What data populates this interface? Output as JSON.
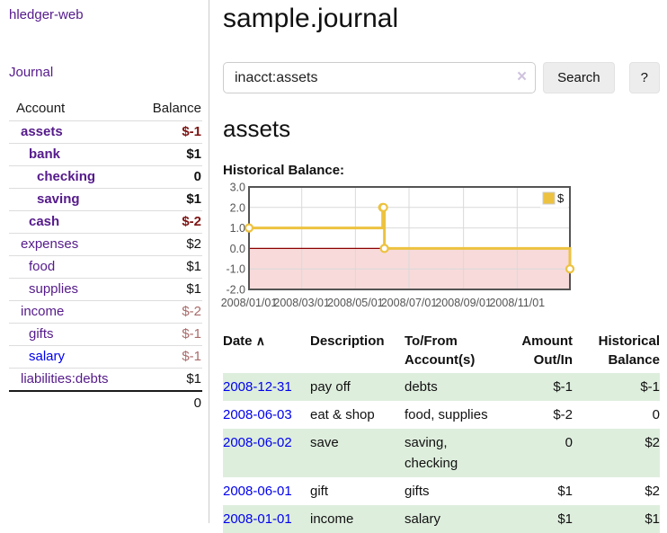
{
  "app": {
    "brand": "hledger-web",
    "nav_journal": "Journal"
  },
  "colors": {
    "link_purple": "#551a8b",
    "link_blue": "#0000ee",
    "neg_strong": "#7e1414",
    "neg_soft": "#a96a6a",
    "stripe_green": "#deeedd",
    "chart_line": "#edc240",
    "chart_negative_fill": "#f8dada",
    "chart_zero_line": "#8b0000",
    "chart_border": "#545454",
    "chart_grid": "#d9d9d9"
  },
  "sidebar": {
    "accounts_table": {
      "headers": [
        "Account",
        "Balance"
      ],
      "rows": [
        {
          "name": "assets",
          "indent": 1,
          "bold": true,
          "balance": "$-1",
          "balance_class": "neg-strong"
        },
        {
          "name": "bank",
          "indent": 2,
          "bold": true,
          "balance": "$1",
          "balance_class": "pos"
        },
        {
          "name": "checking",
          "indent": 3,
          "bold": true,
          "balance": "0",
          "balance_class": "pos"
        },
        {
          "name": "saving",
          "indent": 3,
          "bold": true,
          "balance": "$1",
          "balance_class": "pos"
        },
        {
          "name": "cash",
          "indent": 2,
          "bold": true,
          "balance": "$-2",
          "balance_class": "neg-strong"
        },
        {
          "name": "expenses",
          "indent": 1,
          "bold": false,
          "balance": "$2",
          "balance_class": "pos"
        },
        {
          "name": "food",
          "indent": 2,
          "bold": false,
          "balance": "$1",
          "balance_class": "pos"
        },
        {
          "name": "supplies",
          "indent": 2,
          "bold": false,
          "balance": "$1",
          "balance_class": "pos"
        },
        {
          "name": "income",
          "indent": 1,
          "bold": false,
          "balance": "$-2",
          "balance_class": "neg-soft"
        },
        {
          "name": "gifts",
          "indent": 2,
          "bold": false,
          "balance": "$-1",
          "balance_class": "neg-soft"
        },
        {
          "name": "salary",
          "indent": 2,
          "bold": false,
          "balance": "$-1",
          "balance_class": "neg-soft",
          "link_color": "blue"
        },
        {
          "name": "liabilities:debts",
          "indent": 1,
          "bold": false,
          "balance": "$1",
          "balance_class": "pos"
        }
      ],
      "total": "0"
    }
  },
  "header": {
    "title": "sample.journal"
  },
  "search": {
    "value": "inacct:assets",
    "clear_icon": "×",
    "button": "Search",
    "help_button": "?"
  },
  "account_page": {
    "heading": "assets",
    "chart_label": "Historical Balance:"
  },
  "chart_data": {
    "type": "line",
    "style": "step",
    "series": [
      {
        "name": "$",
        "color": "#edc240",
        "points": [
          [
            "2008-01-01",
            1
          ],
          [
            "2008-06-01",
            2
          ],
          [
            "2008-06-02",
            2
          ],
          [
            "2008-06-03",
            0
          ],
          [
            "2008-12-31",
            -1
          ]
        ]
      }
    ],
    "x_range": [
      "2008-01-01",
      "2008-12-31"
    ],
    "x_ticks": [
      "2008/01/01",
      "2008/03/01",
      "2008/05/01",
      "2008/07/01",
      "2008/09/01",
      "2008/11/01"
    ],
    "y_ticks": [
      "3.0",
      "2.0",
      "1.0",
      "0.0",
      "-1.0",
      "-2.0"
    ],
    "ylim": [
      -2,
      3
    ],
    "grid": true,
    "legend_position": "top-right",
    "legend": [
      "$"
    ],
    "negative_region": {
      "from": 0,
      "to": -2
    }
  },
  "transactions": {
    "sort_icon": "∧",
    "columns": [
      "Date",
      "Description",
      "To/From Account(s)",
      "Amount Out/In",
      "Historical Balance"
    ],
    "rows": [
      {
        "date": "2008-12-31",
        "description": "pay off",
        "accounts": "debts",
        "amount": "$-1",
        "amount_neg": true,
        "balance": "$-1",
        "balance_neg": true,
        "striped": true
      },
      {
        "date": "2008-06-03",
        "description": "eat & shop",
        "accounts": "food, supplies",
        "amount": "$-2",
        "amount_neg": true,
        "balance": "0",
        "balance_neg": false,
        "striped": false
      },
      {
        "date": "2008-06-02",
        "description": "save",
        "accounts": "saving, checking",
        "amount": "0",
        "amount_neg": false,
        "balance": "$2",
        "balance_neg": false,
        "striped": true
      },
      {
        "date": "2008-06-01",
        "description": "gift",
        "accounts": "gifts",
        "amount": "$1",
        "amount_neg": false,
        "balance": "$2",
        "balance_neg": false,
        "striped": false
      },
      {
        "date": "2008-01-01",
        "description": "income",
        "accounts": "salary",
        "amount": "$1",
        "amount_neg": false,
        "balance": "$1",
        "balance_neg": false,
        "striped": true
      }
    ]
  }
}
